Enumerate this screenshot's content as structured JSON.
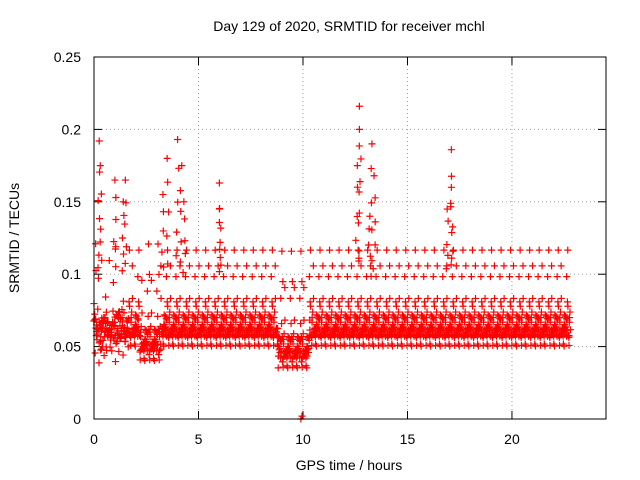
{
  "chart_data": {
    "type": "scatter",
    "title": "Day 129 of 2020, SRMTID for receiver mchl",
    "xlabel": "GPS time / hours",
    "ylabel": "SRMTID / TECUs",
    "xlim": [
      0,
      24.5
    ],
    "ylim": [
      0,
      0.25
    ],
    "xticks": [
      0,
      5,
      10,
      15,
      20
    ],
    "xtick_labels": [
      "0",
      "5",
      "10",
      "15",
      "20"
    ],
    "yticks": [
      0,
      0.05,
      0.1,
      0.15,
      0.2,
      0.25
    ],
    "ytick_labels": [
      "0",
      "0.05",
      "0.1",
      "0.15",
      "0.2",
      "0.25"
    ],
    "grid": true,
    "marker": "+",
    "series": [
      {
        "name": "SRMTID",
        "color": "#ff0000",
        "x_range": [
          0,
          22.8
        ],
        "typical_band": [
          0.02,
          0.1
        ],
        "notable_points": [
          {
            "x": 0.25,
            "y": 0.192
          },
          {
            "x": 0.3,
            "y": 0.175
          },
          {
            "x": 1.0,
            "y": 0.165
          },
          {
            "x": 1.5,
            "y": 0.165
          },
          {
            "x": 1.4,
            "y": 0.15
          },
          {
            "x": 3.5,
            "y": 0.18
          },
          {
            "x": 3.3,
            "y": 0.155
          },
          {
            "x": 4.0,
            "y": 0.193
          },
          {
            "x": 4.2,
            "y": 0.175
          },
          {
            "x": 4.3,
            "y": 0.15
          },
          {
            "x": 6.0,
            "y": 0.163
          },
          {
            "x": 6.0,
            "y": 0.145
          },
          {
            "x": 12.7,
            "y": 0.216
          },
          {
            "x": 12.7,
            "y": 0.2
          },
          {
            "x": 12.6,
            "y": 0.175
          },
          {
            "x": 13.3,
            "y": 0.19
          },
          {
            "x": 13.4,
            "y": 0.168
          },
          {
            "x": 13.2,
            "y": 0.14
          },
          {
            "x": 17.1,
            "y": 0.186
          },
          {
            "x": 17.1,
            "y": 0.16
          },
          {
            "x": 16.9,
            "y": 0.145
          },
          {
            "x": 9.9,
            "y": 0.0
          },
          {
            "x": 9.95,
            "y": 0.002
          }
        ]
      }
    ]
  }
}
